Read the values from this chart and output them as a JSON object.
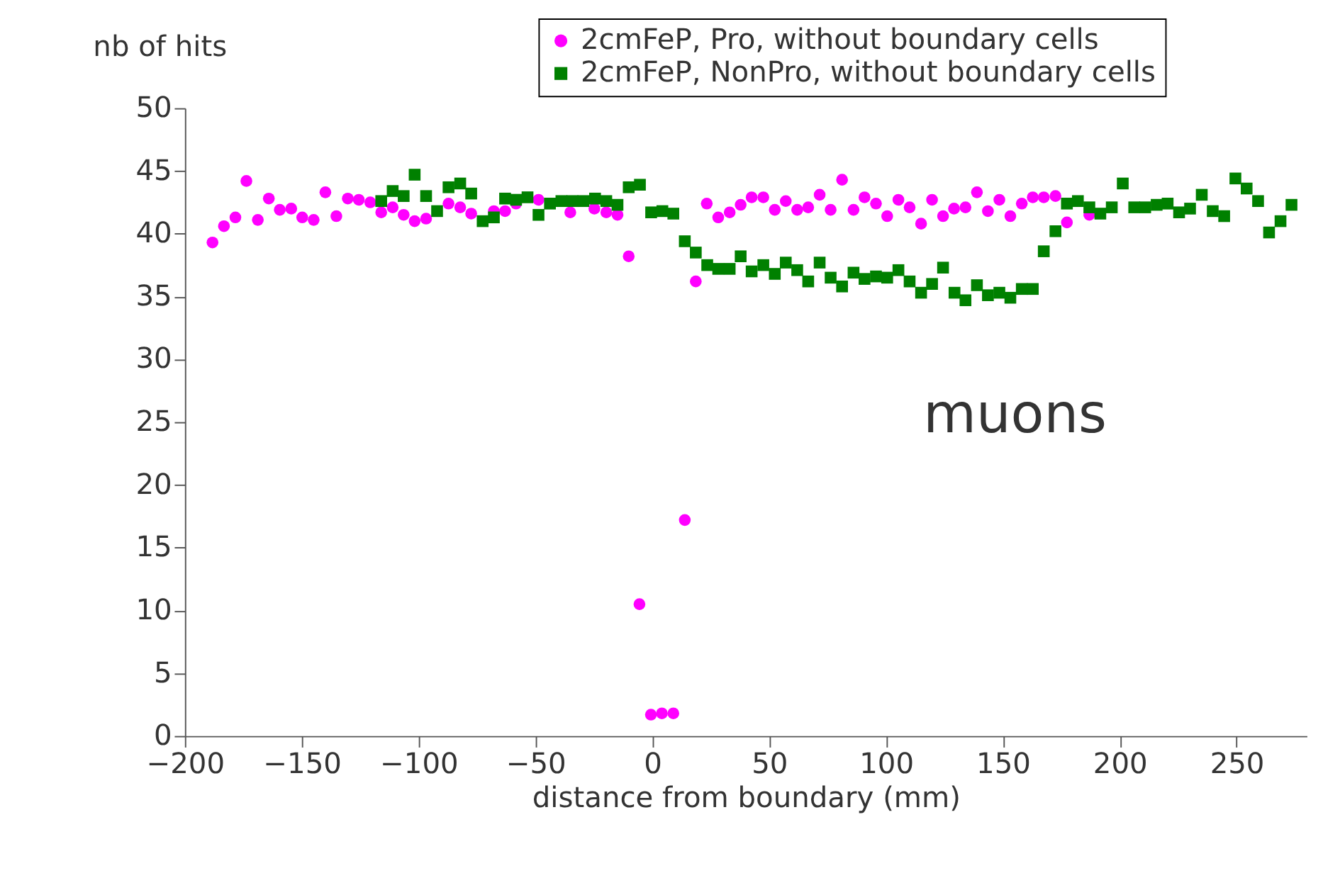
{
  "chart_data": {
    "type": "scatter",
    "xlabel": "distance from boundary (mm)",
    "ylabel": "nb of hits",
    "xlim": [
      -200,
      280
    ],
    "ylim": [
      0,
      50
    ],
    "xticks": [
      -200,
      -150,
      -100,
      -50,
      0,
      50,
      100,
      150,
      200,
      250
    ],
    "yticks": [
      0,
      5,
      10,
      15,
      20,
      25,
      30,
      35,
      40,
      45,
      50
    ],
    "grid": false,
    "legend": "top right",
    "annotations": [
      "muons"
    ],
    "series": [
      {
        "name": "2cmFeP, Pro, without boundary cells",
        "color": "#ff00ff",
        "marker": "circle",
        "x": [
          -188.2,
          -183.3,
          -178.4,
          -173.7,
          -168.8,
          -164.1,
          -159.4,
          -154.5,
          -149.8,
          -144.9,
          -139.9,
          -135.2,
          -130.3,
          -125.6,
          -120.7,
          -116,
          -111.1,
          -106.4,
          -101.7,
          -96.8,
          -87.2,
          -82.2,
          -77.5,
          -67.8,
          -63,
          -58.3,
          -48.7,
          -43.8,
          -35.1,
          -24.8,
          -19.7,
          -14.9,
          -10.1,
          -5.5,
          -0.6,
          4.1,
          9.0,
          13.9,
          18.6,
          23.3,
          28.2,
          33.1,
          37.8,
          42.5,
          47.5,
          52.4,
          57.1,
          62,
          66.7,
          71.6,
          76.3,
          81.2,
          86.1,
          90.8,
          95.7,
          100.5,
          105.3,
          110.1,
          115,
          119.7,
          124.4,
          129.1,
          134,
          138.9,
          143.6,
          148.5,
          153.2,
          158.1,
          162.8,
          167.5,
          172.5,
          177.4,
          182.1,
          187
        ],
        "values": [
          39.3,
          40.6,
          41.3,
          44.2,
          41.1,
          42.8,
          41.9,
          42.0,
          41.3,
          41.1,
          43.3,
          41.4,
          42.8,
          42.7,
          42.5,
          41.7,
          42.1,
          41.5,
          41.0,
          41.2,
          42.4,
          42.1,
          41.6,
          41.8,
          41.8,
          42.4,
          42.7,
          null,
          41.7,
          42.0,
          41.7,
          41.5,
          38.2,
          10.5,
          1.7,
          1.8,
          1.8,
          17.2,
          36.2,
          42.4,
          41.3,
          41.7,
          42.3,
          42.9,
          42.9,
          41.9,
          42.6,
          41.9,
          42.1,
          43.1,
          41.9,
          44.3,
          41.9,
          42.9,
          42.4,
          41.4,
          42.7,
          42.1,
          40.8,
          42.7,
          41.4,
          42.0,
          42.1,
          43.3,
          41.8,
          42.7,
          41.4,
          42.4,
          42.9,
          42.9,
          43.0,
          40.9,
          null,
          41.5
        ]
      },
      {
        "name": "2cmFeP, NonPro, without boundary cells",
        "color": "#008000",
        "marker": "square",
        "x": [
          -116,
          -111.1,
          -106.4,
          -101.7,
          -96.8,
          -92.1,
          -87.2,
          -82.2,
          -77.5,
          -72.6,
          -67.8,
          -63,
          -58.3,
          -53.4,
          -48.7,
          -43.8,
          -38.9,
          -34.2,
          -29.5,
          -24.5,
          -19.7,
          -14.9,
          -10.1,
          -5.3,
          -0.5,
          4.3,
          9.0,
          13.9,
          18.6,
          23.5,
          28.2,
          33.1,
          37.8,
          42.5,
          47.5,
          52.4,
          57.1,
          62,
          66.7,
          71.6,
          76.3,
          81.2,
          86.1,
          90.8,
          95.7,
          100.5,
          105.3,
          110.1,
          115,
          119.7,
          124.4,
          129.3,
          134,
          138.9,
          143.6,
          148.5,
          153.2,
          158.1,
          162.8,
          167.5,
          172.5,
          177.4,
          182.1,
          187,
          191.7,
          196.6,
          201.3,
          206.2,
          210.9,
          215.8,
          220.5,
          225.4,
          230.1,
          235.1,
          239.8,
          244.7,
          249.5,
          254.3,
          259.2,
          263.9,
          268.8,
          273.5
        ],
        "values": [
          42.6,
          43.4,
          43.0,
          44.7,
          43.0,
          41.8,
          43.7,
          44.0,
          43.2,
          41.0,
          41.3,
          42.8,
          42.7,
          42.9,
          41.5,
          42.4,
          42.6,
          42.6,
          42.6,
          42.8,
          42.6,
          42.3,
          43.7,
          43.9,
          41.7,
          41.8,
          41.6,
          39.4,
          38.5,
          37.5,
          37.2,
          37.2,
          38.2,
          37.0,
          37.5,
          36.8,
          37.7,
          37.1,
          36.2,
          37.7,
          36.5,
          35.8,
          36.9,
          36.4,
          36.6,
          36.5,
          37.1,
          36.2,
          35.3,
          36.0,
          37.3,
          35.3,
          34.7,
          35.9,
          35.1,
          35.3,
          34.9,
          35.6,
          35.6,
          38.6,
          40.2,
          42.4,
          42.6,
          42.1,
          41.6,
          42.1,
          44.0,
          42.1,
          42.1,
          42.3,
          42.4,
          41.7,
          42.0,
          43.1,
          41.8,
          41.4,
          44.4,
          43.6,
          42.6,
          40.1,
          41.0,
          42.3
        ]
      }
    ]
  }
}
